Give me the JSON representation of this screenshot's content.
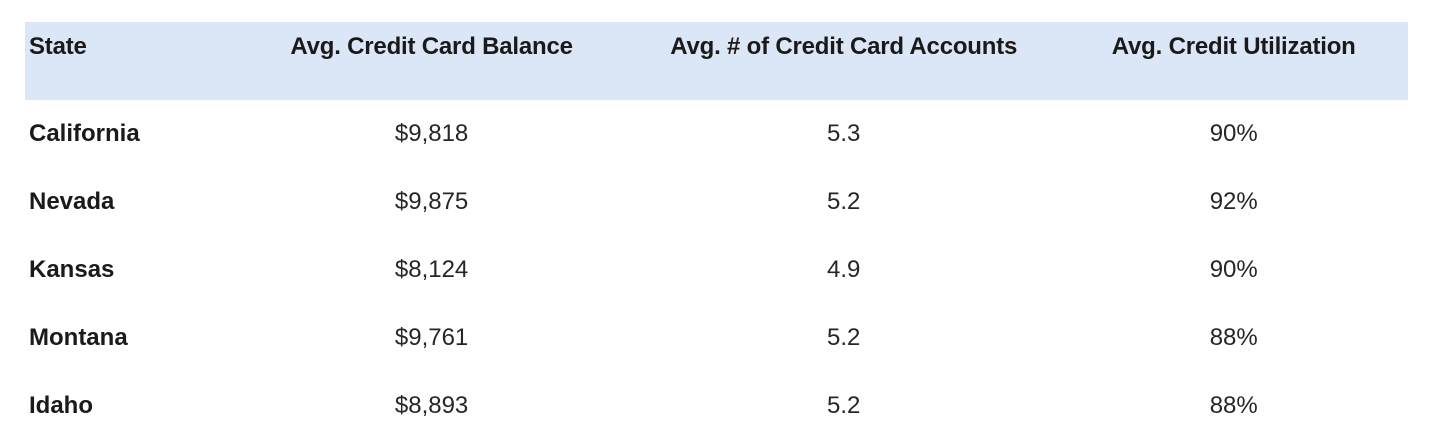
{
  "colors": {
    "header_background": "#dbe7f6",
    "header_text": "#1a1a1a",
    "body_text": "#262626",
    "page_background": "#ffffff"
  },
  "chart_data": {
    "type": "table",
    "columns": [
      "State",
      "Avg. Credit Card Balance",
      "Avg. # of Credit Card Accounts",
      "Avg. Credit Utilization"
    ],
    "rows": [
      [
        "California",
        "$9,818",
        "5.3",
        "90%"
      ],
      [
        "Nevada",
        "$9,875",
        "5.2",
        "92%"
      ],
      [
        "Kansas",
        "$8,124",
        "4.9",
        "90%"
      ],
      [
        "Montana",
        "$9,761",
        "5.2",
        "88%"
      ],
      [
        "Idaho",
        "$8,893",
        "5.2",
        "88%"
      ]
    ]
  }
}
